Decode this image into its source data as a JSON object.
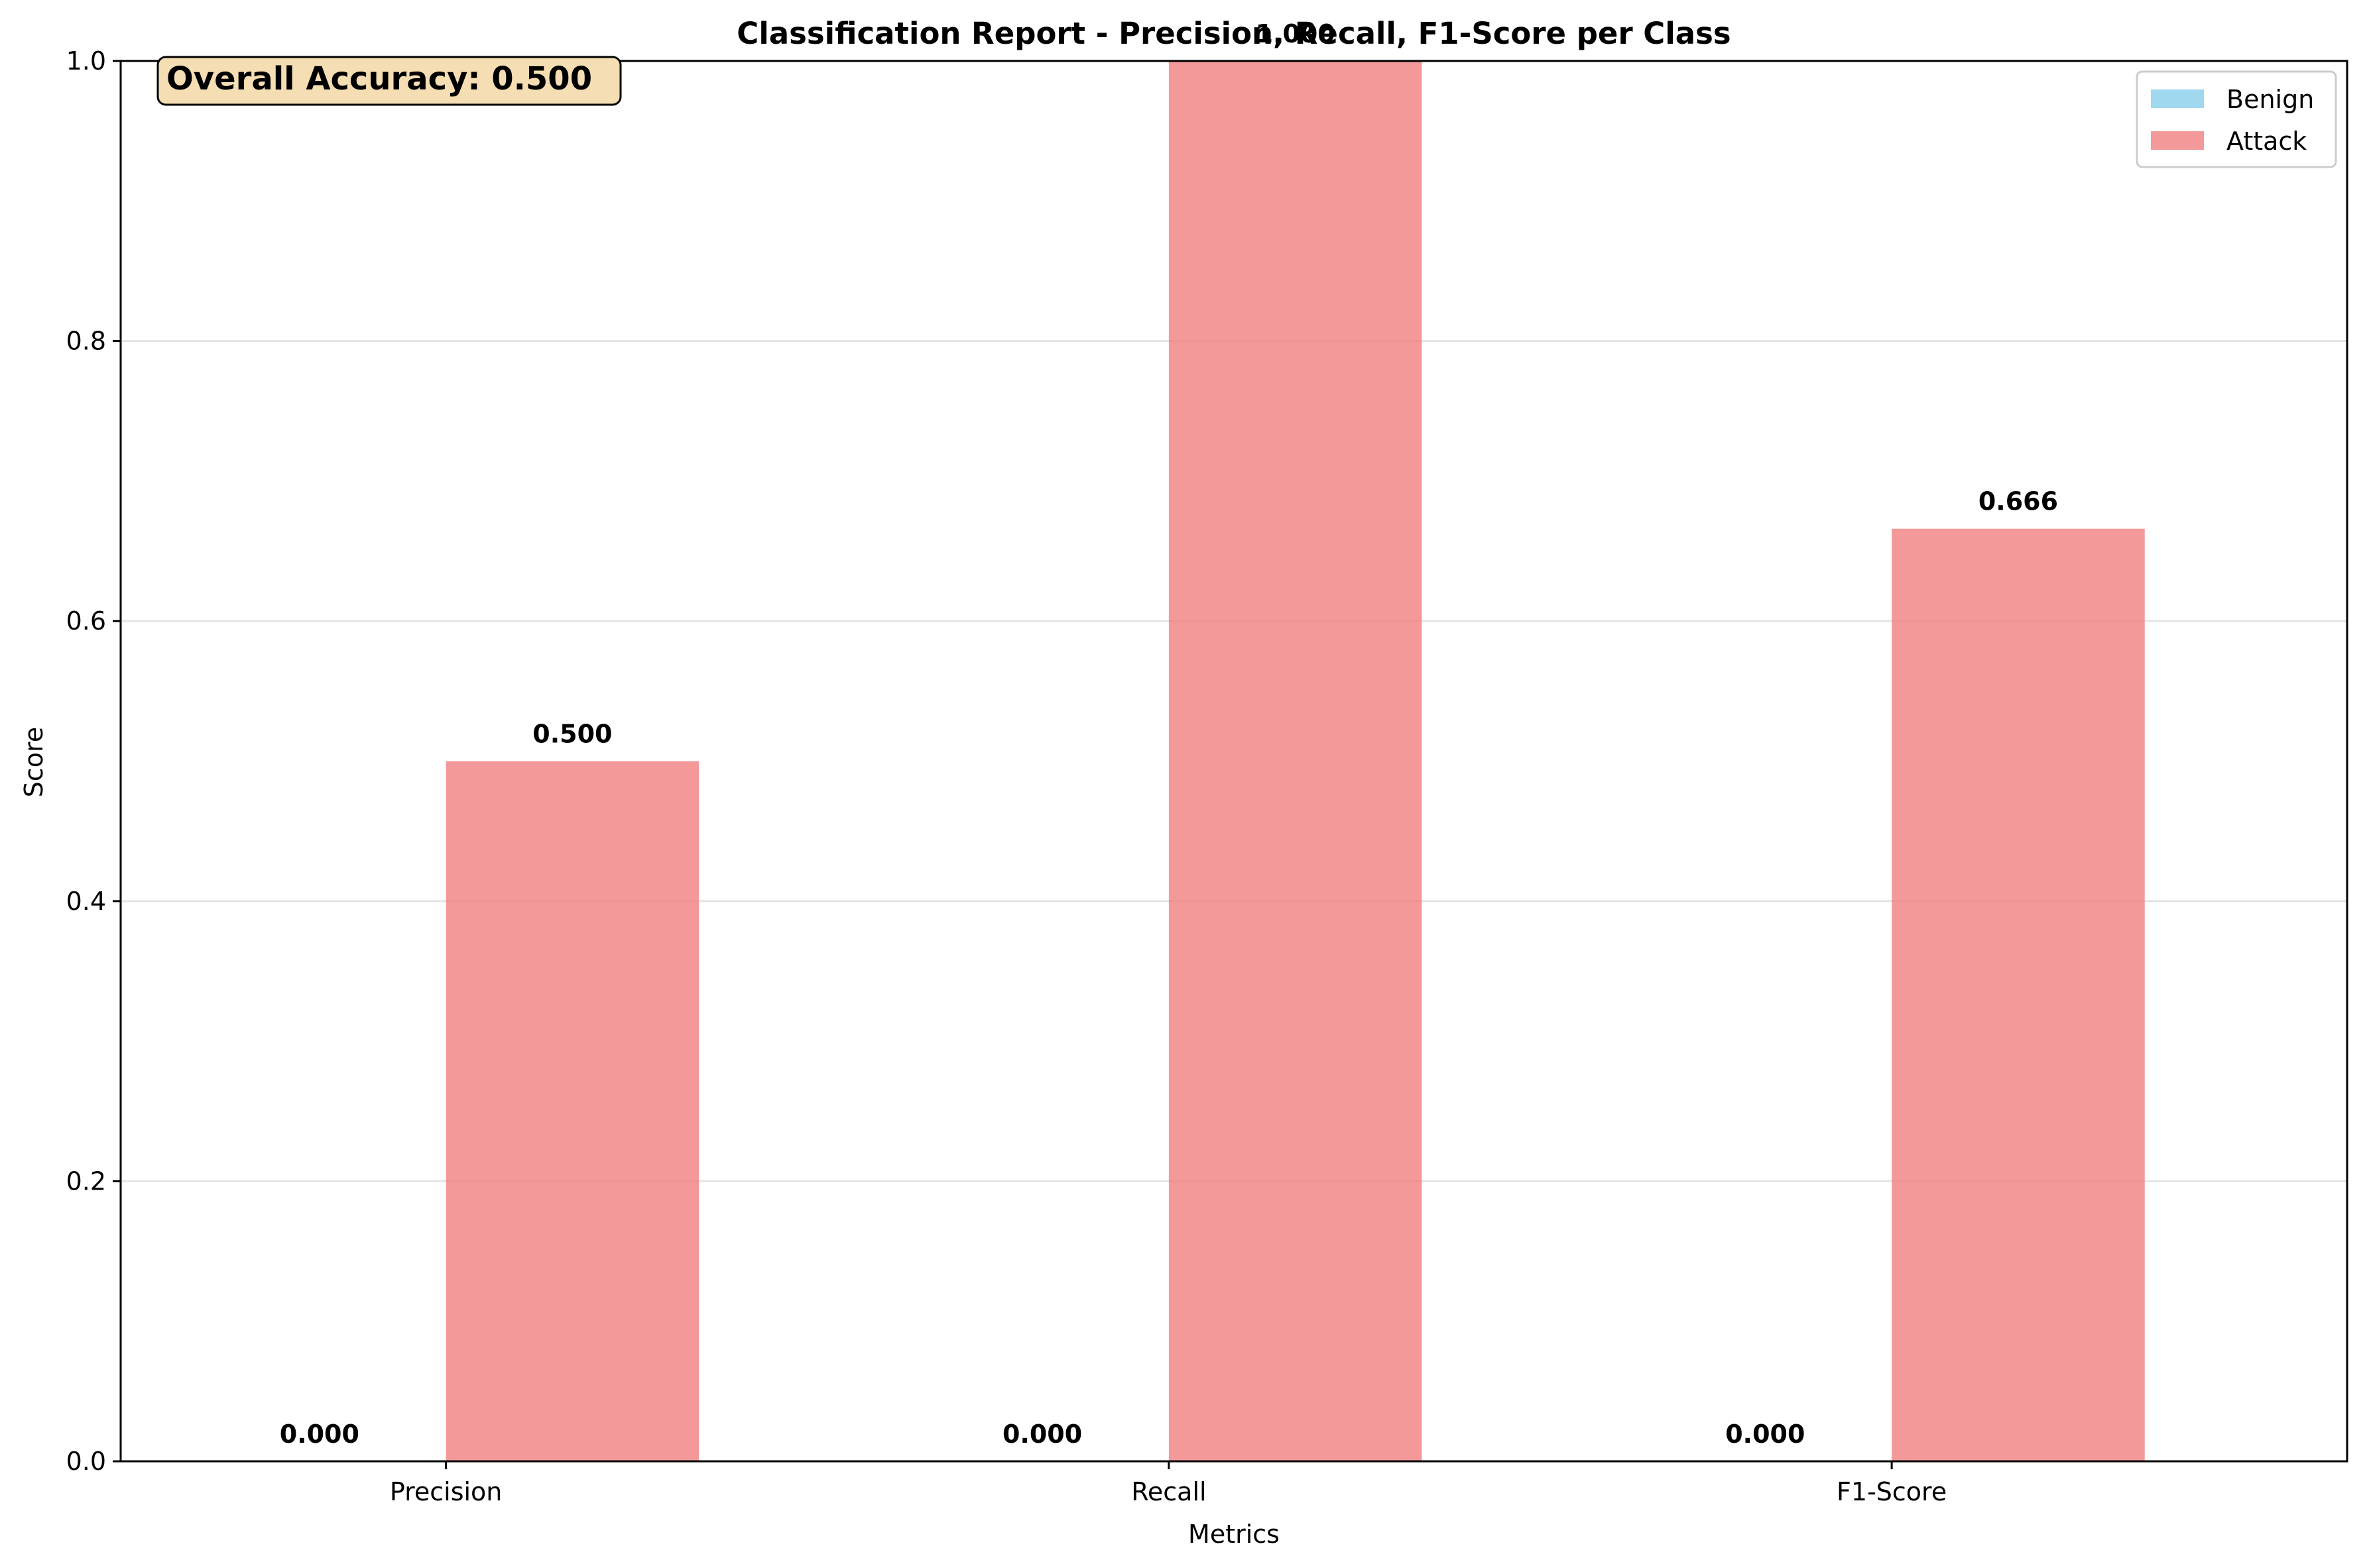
{
  "chart_data": {
    "type": "bar",
    "title": "Classification Report - Precision, Recall, F1-Score per Class",
    "xlabel": "Metrics",
    "ylabel": "Score",
    "ylim": [
      0,
      1
    ],
    "yticks": [
      "0.0",
      "0.2",
      "0.4",
      "0.6",
      "0.8",
      "1.0"
    ],
    "categories": [
      "Precision",
      "Recall",
      "F1-Score"
    ],
    "series": [
      {
        "name": "Benign",
        "color": "#87ceeb",
        "values": [
          0.0,
          0.0,
          0.0
        ],
        "labels": [
          "0.000",
          "0.000",
          "0.000"
        ]
      },
      {
        "name": "Attack",
        "color": "#f08080",
        "values": [
          0.5,
          1.0,
          0.666
        ],
        "labels": [
          "0.500",
          "1.000",
          "0.666"
        ]
      }
    ],
    "grid": "horizontal",
    "legend_position": "top-right",
    "annotation": {
      "text": "Overall Accuracy: 0.500",
      "box_color": "#f5deb3"
    }
  }
}
